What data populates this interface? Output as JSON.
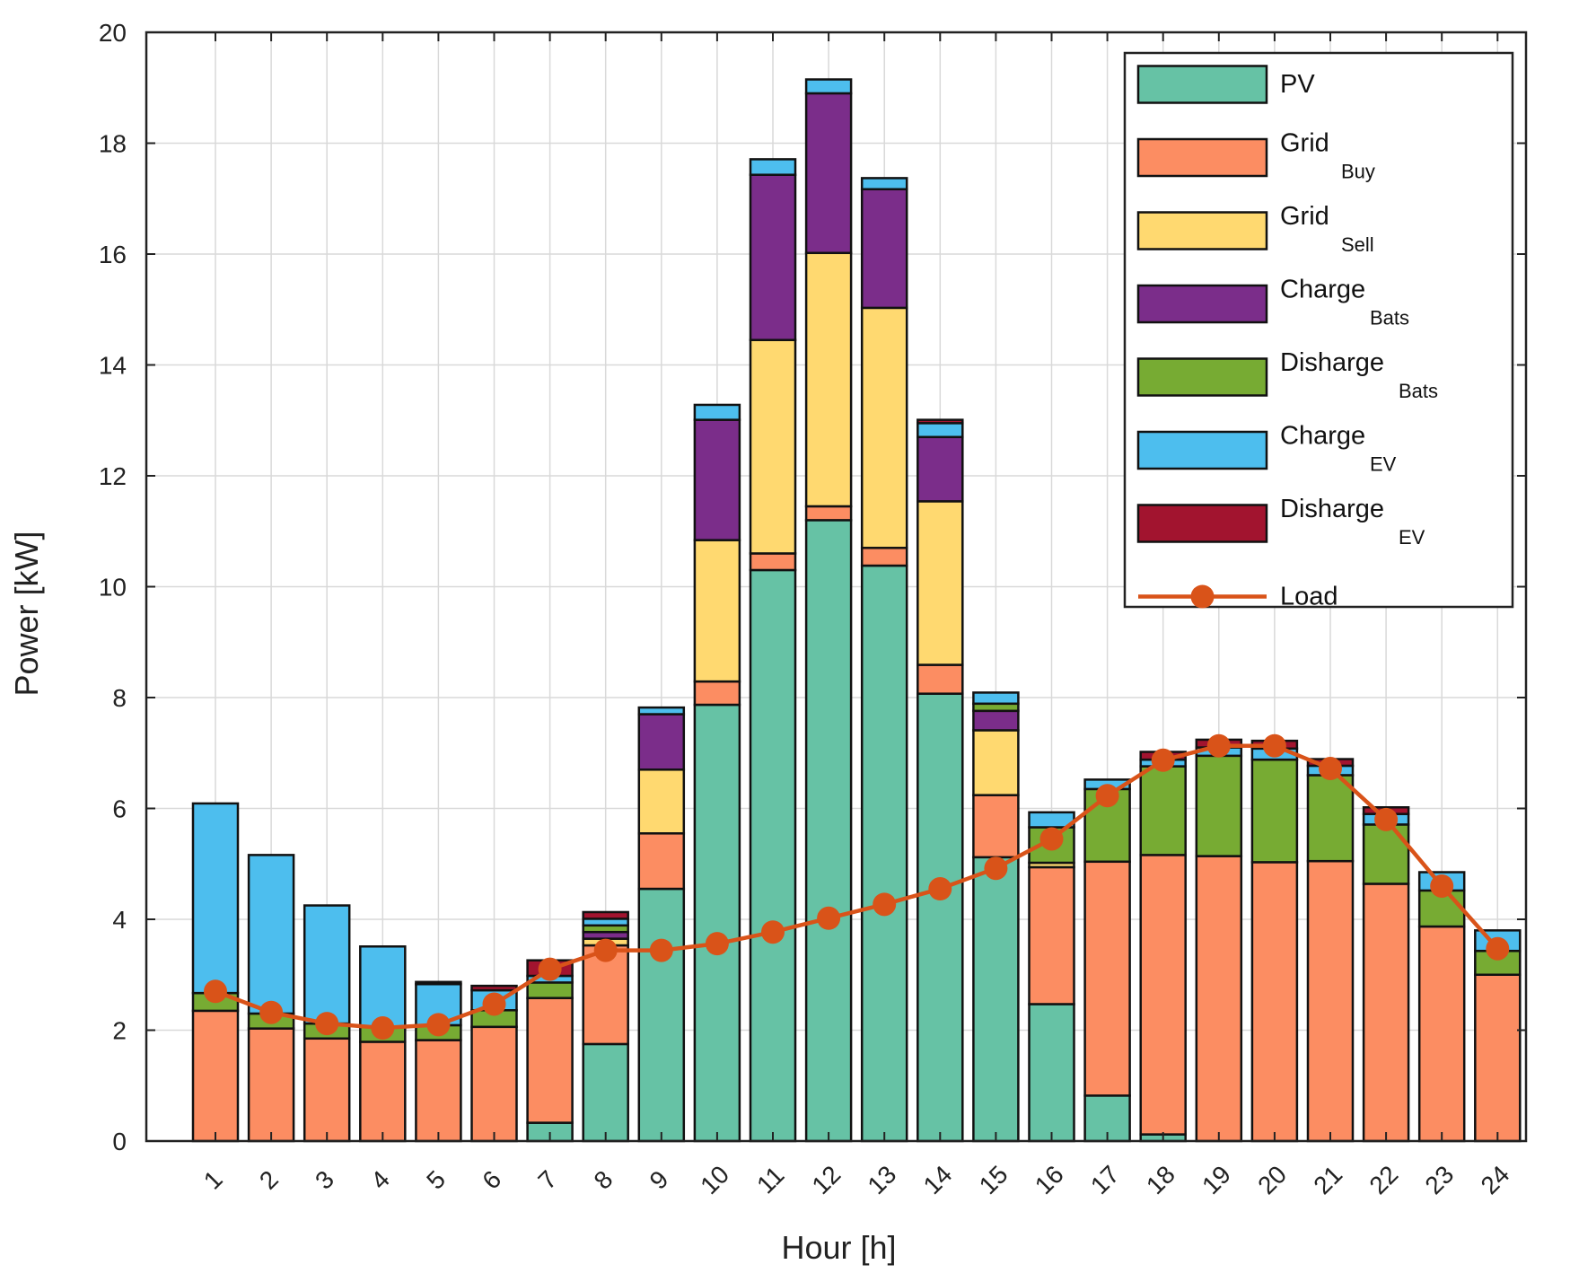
{
  "chart_data": {
    "type": "bar",
    "stacked": true,
    "xlabel": "Hour [h]",
    "ylabel": "Power [kW]",
    "ylim": [
      0,
      20
    ],
    "y_ticks": [
      "0",
      "2",
      "4",
      "6",
      "8",
      "10",
      "12",
      "14",
      "16",
      "18",
      "20"
    ],
    "categories": [
      "1",
      "2",
      "3",
      "4",
      "5",
      "6",
      "7",
      "8",
      "9",
      "10",
      "11",
      "12",
      "13",
      "14",
      "15",
      "16",
      "17",
      "18",
      "19",
      "20",
      "21",
      "22",
      "23",
      "24"
    ],
    "grid": true,
    "legend_position": "top-right",
    "series": [
      {
        "name": "PV",
        "sub": "",
        "color": "#66c2a5",
        "values": [
          0,
          0,
          0,
          0,
          0,
          0,
          0.33,
          1.75,
          4.55,
          7.87,
          10.3,
          11.2,
          10.38,
          8.07,
          5.12,
          2.47,
          0.82,
          0.12,
          0,
          0,
          0,
          0,
          0,
          0
        ]
      },
      {
        "name": "Grid",
        "sub": "Buy",
        "color": "#fc8d62",
        "values": [
          2.35,
          2.03,
          1.85,
          1.79,
          1.82,
          2.06,
          2.25,
          1.78,
          1.0,
          0.42,
          0.3,
          0.25,
          0.32,
          0.52,
          1.12,
          2.47,
          4.22,
          5.04,
          5.14,
          5.03,
          5.05,
          4.64,
          3.87,
          3.0
        ]
      },
      {
        "name": "Grid",
        "sub": "Sell",
        "color": "#ffd970",
        "values": [
          0,
          0,
          0,
          0,
          0,
          0,
          0,
          0.12,
          1.15,
          2.55,
          3.85,
          4.57,
          4.33,
          2.95,
          1.17,
          0.08,
          0,
          0,
          0,
          0,
          0,
          0,
          0,
          0
        ]
      },
      {
        "name": "Charge",
        "sub": "Bats",
        "color": "#7b2d8a",
        "values": [
          0,
          0,
          0,
          0,
          0,
          0,
          0,
          0.12,
          1.0,
          2.17,
          2.98,
          2.88,
          2.14,
          1.16,
          0.35,
          0,
          0,
          0,
          0,
          0,
          0,
          0,
          0,
          0
        ]
      },
      {
        "name": "Disharge",
        "sub": "Bats",
        "color": "#77ab33",
        "values": [
          0.32,
          0.27,
          0.27,
          0.27,
          0.27,
          0.3,
          0.28,
          0.12,
          0,
          0,
          0,
          0,
          0,
          0,
          0.13,
          0.64,
          1.31,
          1.6,
          1.81,
          1.85,
          1.55,
          1.07,
          0.65,
          0.43
        ]
      },
      {
        "name": "Charge",
        "sub": "EV",
        "color": "#4dbeee",
        "values": [
          3.42,
          2.86,
          2.13,
          1.45,
          0.74,
          0.36,
          0.12,
          0.12,
          0.12,
          0.27,
          0.28,
          0.25,
          0.2,
          0.25,
          0.2,
          0.27,
          0.17,
          0.12,
          0.15,
          0.2,
          0.17,
          0.19,
          0.33,
          0.37
        ]
      },
      {
        "name": "Disharge",
        "sub": "EV",
        "color": "#a2142f",
        "values": [
          0,
          0,
          0,
          0,
          0.04,
          0.08,
          0.28,
          0.12,
          0,
          0,
          0,
          0,
          0,
          0.06,
          0,
          0,
          0,
          0.14,
          0.14,
          0.14,
          0.12,
          0.12,
          0,
          0
        ]
      }
    ],
    "line_series": {
      "name": "Load",
      "sub": "",
      "color": "#d95319",
      "values": [
        2.7,
        2.32,
        2.12,
        2.04,
        2.1,
        2.47,
        3.1,
        3.44,
        3.44,
        3.56,
        3.77,
        4.02,
        4.27,
        4.55,
        4.92,
        5.45,
        6.23,
        6.87,
        7.13,
        7.13,
        6.72,
        5.8,
        4.6,
        3.47
      ]
    }
  }
}
